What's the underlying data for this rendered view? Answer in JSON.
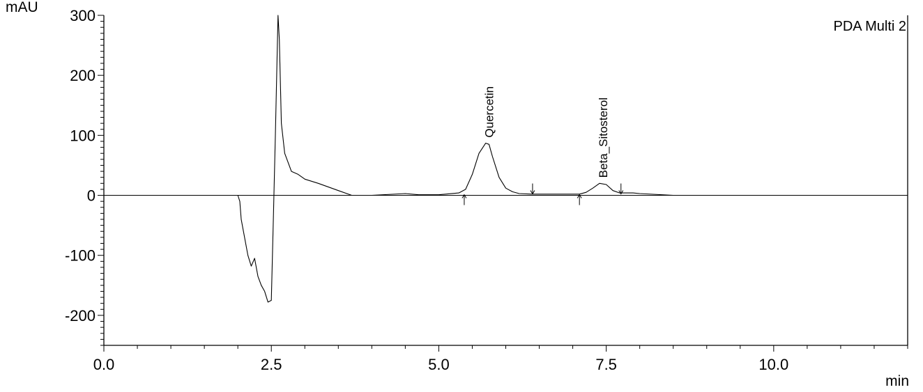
{
  "chart_data": {
    "type": "line",
    "title": "",
    "ylabel": "mAU",
    "xlabel": "min",
    "legend": "PDA Multi 2",
    "legend_position": "top-right",
    "grid": false,
    "xlim": [
      0,
      12
    ],
    "ylim": [
      -250,
      300
    ],
    "x_ticks": [
      0,
      2.5,
      5,
      7.5,
      10
    ],
    "x_tick_labels": [
      "0.0",
      "2.5",
      "5.0",
      "7.5",
      "10.0"
    ],
    "y_ticks": [
      300,
      200,
      100,
      0,
      -100,
      -200
    ],
    "y_tick_labels": [
      "300",
      "200",
      "100",
      "0",
      "-100",
      "-200"
    ],
    "series": [
      {
        "x": [
          0,
          2.0,
          2.03,
          2.05,
          2.1,
          2.15,
          2.2,
          2.25,
          2.3,
          2.35,
          2.4,
          2.45,
          2.5,
          2.53,
          2.56,
          2.58,
          2.6,
          2.62,
          2.65,
          2.7,
          2.8,
          2.9,
          3.0,
          3.2,
          3.5,
          3.7,
          4.0,
          4.5,
          4.7,
          5.0,
          5.3,
          5.4,
          5.5,
          5.6,
          5.7,
          5.75,
          5.8,
          5.9,
          6.0,
          6.1,
          6.2,
          6.4,
          6.6,
          6.8,
          7.0,
          7.1,
          7.2,
          7.3,
          7.4,
          7.5,
          7.6,
          7.7,
          7.9,
          8.0,
          8.5,
          9.0,
          10.0,
          11.0,
          12.0
        ],
        "values": [
          0,
          0,
          -10,
          -40,
          -70,
          -100,
          -118,
          -105,
          -135,
          -150,
          -160,
          -178,
          -175,
          -40,
          100,
          200,
          300,
          260,
          120,
          70,
          40,
          35,
          27,
          20,
          8,
          0,
          0,
          3,
          1,
          1,
          4,
          10,
          35,
          70,
          87,
          85,
          65,
          30,
          12,
          6,
          3,
          2,
          2,
          2,
          2,
          2,
          5,
          12,
          20,
          18,
          8,
          4,
          4,
          3,
          0,
          0,
          0,
          0,
          0
        ]
      }
    ],
    "peaks": [
      {
        "label": "Quercetin",
        "apex_x": 5.75,
        "apex_y": 87,
        "start_x": 5.38,
        "end_x": 6.4
      },
      {
        "label": "Beta_Sitosterol",
        "apex_x": 7.45,
        "apex_y": 20,
        "start_x": 7.1,
        "end_x": 7.72
      }
    ]
  }
}
